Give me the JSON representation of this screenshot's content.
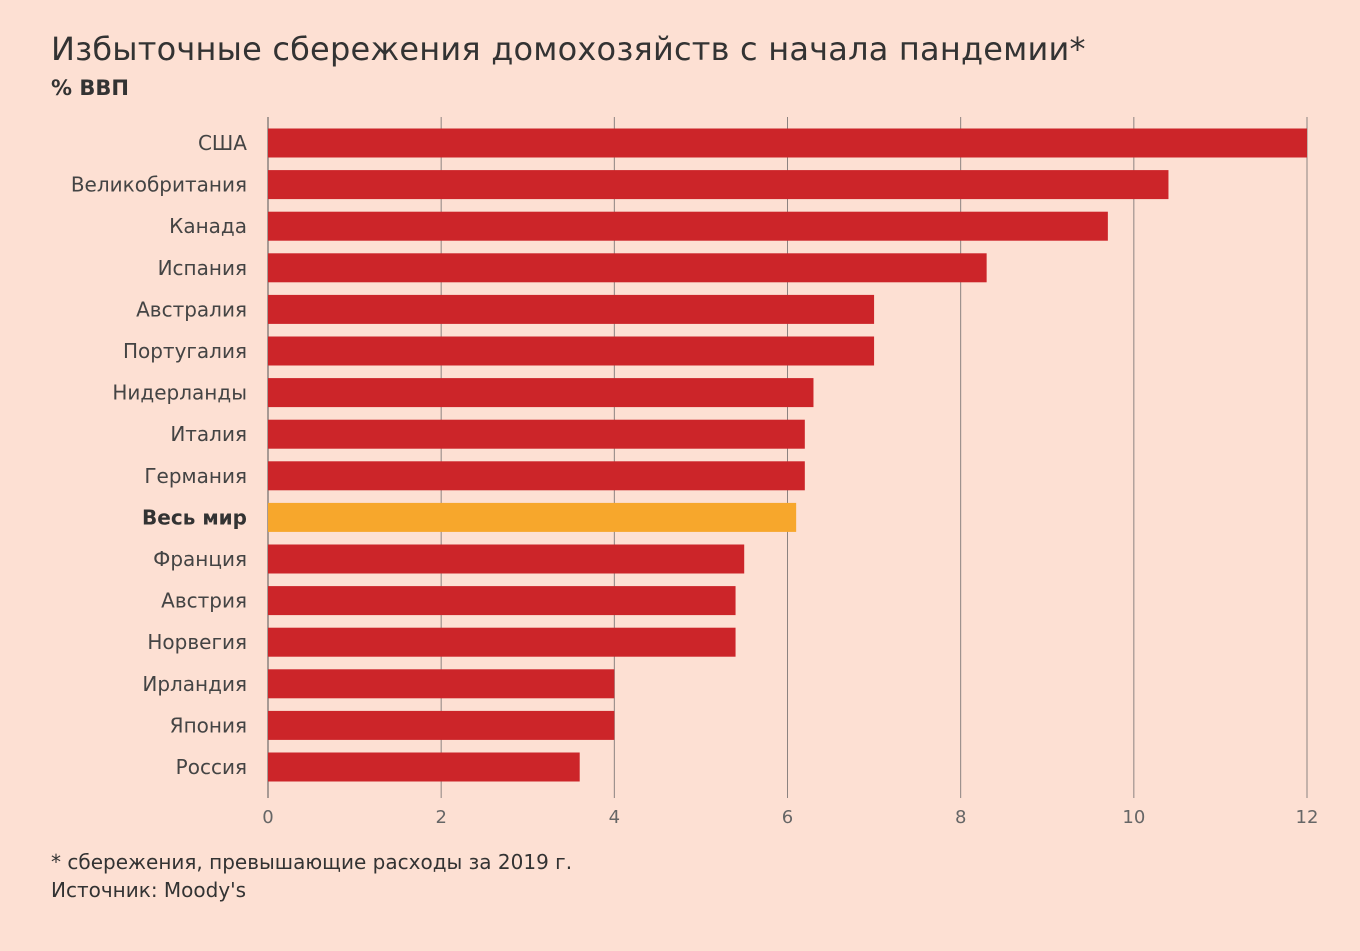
{
  "chart_data": {
    "type": "bar",
    "orientation": "horizontal",
    "title": "Избыточные сбережения домохозяйств с начала пандемии*",
    "subtitle": "% ВВП",
    "categories": [
      "США",
      "Великобритания",
      "Канада",
      "Испания",
      "Австралия",
      "Португалия",
      "Нидерланды",
      "Италия",
      "Германия",
      "Весь мир",
      "Франция",
      "Австрия",
      "Норвегия",
      "Ирландия",
      "Япония",
      "Россия"
    ],
    "values": [
      12.0,
      10.4,
      9.7,
      8.3,
      7.0,
      7.0,
      6.3,
      6.2,
      6.2,
      6.1,
      5.5,
      5.4,
      5.4,
      4.0,
      4.0,
      3.6
    ],
    "highlight": "Весь мир",
    "xlim": [
      0,
      12
    ],
    "xticks": [
      0,
      2,
      4,
      6,
      8,
      10,
      12
    ],
    "xtick_labels": [
      "0",
      "2",
      "4",
      "6",
      "8",
      "10",
      "12"
    ],
    "grid": true,
    "colors": {
      "bar": "#cc2529",
      "highlight": "#f7a72c",
      "grid": "#8c8380",
      "background": "#fde0d3"
    },
    "footnote": "* сбережения, превышающие расходы за 2019 г.",
    "source": "Источник: Moody's"
  }
}
